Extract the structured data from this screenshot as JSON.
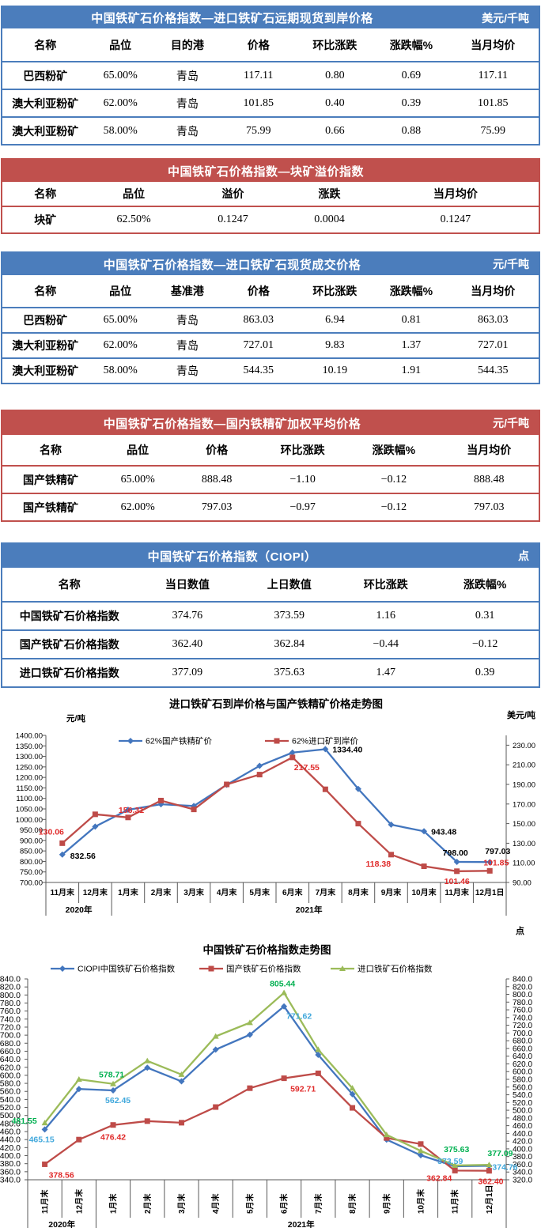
{
  "colors": {
    "blue_theme": "#4B7DBC",
    "red_theme": "#C0504D",
    "chart_blue": "#4376BE",
    "chart_red": "#BE4B48",
    "chart_green": "#9BBB59",
    "label_red": "#E02B2B",
    "label_blue": "#41A8DC",
    "label_green": "#00B050"
  },
  "tables": [
    {
      "id": "forward-spot-cfr",
      "theme": "blue",
      "title": "中国铁矿石价格指数—进口铁矿石远期现货到岸价格",
      "unit": "美元/千吨",
      "columns": [
        "名称",
        "品位",
        "目的港",
        "价格",
        "环比涨跌",
        "涨跌幅%",
        "当月均价"
      ],
      "rows": [
        [
          "巴西粉矿",
          "65.00%",
          "青岛",
          "117.11",
          "0.80",
          "0.69",
          "117.11"
        ],
        [
          "澳大利亚粉矿",
          "62.00%",
          "青岛",
          "101.85",
          "0.40",
          "0.39",
          "101.85"
        ],
        [
          "澳大利亚粉矿",
          "58.00%",
          "青岛",
          "75.99",
          "0.66",
          "0.88",
          "75.99"
        ]
      ]
    },
    {
      "id": "lump-premium",
      "theme": "red",
      "title": "中国铁矿石价格指数—块矿溢价指数",
      "unit": "",
      "columns": [
        "名称",
        "品位",
        "溢价",
        "涨跌",
        "当月均价"
      ],
      "rows": [
        [
          "块矿",
          "62.50%",
          "0.1247",
          "0.0004",
          "0.1247"
        ]
      ]
    },
    {
      "id": "import-spot-deal",
      "theme": "blue",
      "title": "中国铁矿石价格指数—进口铁矿石现货成交价格",
      "unit": "元/千吨",
      "columns": [
        "名称",
        "品位",
        "基准港",
        "价格",
        "环比涨跌",
        "涨跌幅%",
        "当月均价"
      ],
      "rows": [
        [
          "巴西粉矿",
          "65.00%",
          "青岛",
          "863.03",
          "6.94",
          "0.81",
          "863.03"
        ],
        [
          "澳大利亚粉矿",
          "62.00%",
          "青岛",
          "727.01",
          "9.83",
          "1.37",
          "727.01"
        ],
        [
          "澳大利亚粉矿",
          "58.00%",
          "青岛",
          "544.35",
          "10.19",
          "1.91",
          "544.35"
        ]
      ]
    },
    {
      "id": "domestic-concentrate",
      "theme": "red",
      "title": "中国铁矿石价格指数—国内铁精矿加权平均价格",
      "unit": "元/千吨",
      "columns": [
        "名称",
        "品位",
        "价格",
        "环比涨跌",
        "涨跌幅%",
        "当月均价"
      ],
      "rows": [
        [
          "国产铁精矿",
          "65.00%",
          "888.48",
          "−1.10",
          "−0.12",
          "888.48"
        ],
        [
          "国产铁精矿",
          "62.00%",
          "797.03",
          "−0.97",
          "−0.12",
          "797.03"
        ]
      ]
    },
    {
      "id": "ciopi-index",
      "theme": "blue",
      "title": "中国铁矿石价格指数（CIOPI）",
      "unit": "点",
      "columns": [
        "名称",
        "当日数值",
        "上日数值",
        "环比涨跌",
        "涨跌幅%"
      ],
      "rows": [
        [
          "中国铁矿石价格指数",
          "374.76",
          "373.59",
          "1.16",
          "0.31"
        ],
        [
          "国产铁矿石价格指数",
          "362.40",
          "362.84",
          "−0.44",
          "−0.12"
        ],
        [
          "进口铁矿石价格指数",
          "377.09",
          "375.63",
          "1.47",
          "0.39"
        ]
      ]
    }
  ],
  "chart_data": [
    {
      "type": "line",
      "title": "进口铁矿石到岸价格与国产铁精矿价格走势图",
      "left_axis": {
        "unit": "元/吨",
        "min": 700,
        "max": 1400,
        "step": 50,
        "decimals": 2
      },
      "right_axis": {
        "unit": "美元/吨",
        "min": 90,
        "max": 240,
        "step": 20,
        "decimals": 2,
        "label_max": 230
      },
      "categories": [
        "11月末",
        "12月末",
        "1月末",
        "2月末",
        "3月末",
        "4月末",
        "5月末",
        "6月末",
        "7月末",
        "8月末",
        "9月末",
        "10月末",
        "11月末",
        "12月1日"
      ],
      "year_groups": [
        {
          "label": "2020年",
          "span": 2
        },
        {
          "label": "2021年",
          "span": 12
        }
      ],
      "legend_position": "top",
      "grid": false,
      "series": [
        {
          "name": "62%国产铁精矿价",
          "axis": "left",
          "color": "#4376BE",
          "label_color": "#000000",
          "marker": "diamond",
          "values": [
            832.56,
            966,
            1046,
            1072,
            1064,
            1165,
            1255,
            1318,
            1334.4,
            1145,
            975,
            943.48,
            798.0,
            797.03
          ],
          "point_labels": [
            {
              "i": 0,
              "text": "832.56",
              "dx": 10,
              "dy": 5
            },
            {
              "i": 8,
              "text": "1334.40",
              "dx": 9,
              "dy": 4
            },
            {
              "i": 11,
              "text": "943.48",
              "dx": 9,
              "dy": 4
            },
            {
              "i": 12,
              "text": "798.00",
              "dx": -18,
              "dy": -8
            },
            {
              "i": 13,
              "text": "797.03",
              "dx": -6,
              "dy": -10
            }
          ]
        },
        {
          "name": "62%进口矿到岸价",
          "axis": "right",
          "color": "#BE4B48",
          "label_color": "#E02B2B",
          "marker": "square",
          "values": [
            130.06,
            159.5,
            156.31,
            173.5,
            164.5,
            190,
            200,
            217.55,
            185,
            150,
            118.38,
            106.5,
            101.46,
            101.85
          ],
          "point_labels": [
            {
              "i": 0,
              "text": "130.06",
              "dx": -30,
              "dy": -11
            },
            {
              "i": 2,
              "text": "156.31",
              "dx": -12,
              "dy": -6
            },
            {
              "i": 7,
              "text": "217.55",
              "dx": 2,
              "dy": 16
            },
            {
              "i": 10,
              "text": "118.38",
              "dx": -32,
              "dy": 15
            },
            {
              "i": 12,
              "text": "101.46",
              "dx": -16,
              "dy": 16
            },
            {
              "i": 13,
              "text": "101.85",
              "dx": -8,
              "dy": -7
            }
          ]
        }
      ]
    },
    {
      "type": "line",
      "title": "中国铁矿石价格指数走势图",
      "left_axis": {
        "unit": "",
        "min": 340,
        "max": 840,
        "step": 20,
        "decimals": 1
      },
      "right_axis": {
        "unit": "点",
        "min": 320,
        "max": 840,
        "step": 20,
        "decimals": 1
      },
      "categories": [
        "11月末",
        "12月末",
        "1月末",
        "2月末",
        "3月末",
        "4月末",
        "5月末",
        "6月末",
        "7月末",
        "8月末",
        "9月末",
        "10月末",
        "11月末",
        "12月1日"
      ],
      "year_groups": [
        {
          "label": "2020年",
          "span": 2
        },
        {
          "label": "2021年",
          "span": 12
        }
      ],
      "legend_position": "top",
      "grid": false,
      "series": [
        {
          "name": "CIOPI中国铁矿石价格指数",
          "axis": "left",
          "color": "#4376BE",
          "label_color": "#41A8DC",
          "marker": "diamond",
          "values": [
            465.15,
            566,
            562.45,
            619,
            585,
            664,
            701,
            771.62,
            651,
            553,
            440,
            401,
            373.59,
            374.76
          ],
          "point_labels": [
            {
              "i": 0,
              "text": "465.15",
              "dx": -20,
              "dy": 16
            },
            {
              "i": 2,
              "text": "562.45",
              "dx": -10,
              "dy": 16
            },
            {
              "i": 7,
              "text": "771.62",
              "dx": 3,
              "dy": 16
            },
            {
              "i": 12,
              "text": "373.59",
              "dx": -22,
              "dy": -3
            },
            {
              "i": 13,
              "text": "374.76",
              "dx": 4,
              "dy": 5
            }
          ]
        },
        {
          "name": "国产铁矿石价格指数",
          "axis": "left",
          "color": "#BE4B48",
          "label_color": "#E02B2B",
          "marker": "square",
          "values": [
            378.56,
            440,
            476.42,
            486,
            482,
            521,
            568,
            592.71,
            605,
            519,
            444,
            429,
            362.84,
            362.4
          ],
          "point_labels": [
            {
              "i": 0,
              "text": "378.56",
              "dx": 5,
              "dy": 17
            },
            {
              "i": 2,
              "text": "476.42",
              "dx": -16,
              "dy": 19
            },
            {
              "i": 7,
              "text": "592.71",
              "dx": 8,
              "dy": 17
            },
            {
              "i": 12,
              "text": "362.84",
              "dx": -36,
              "dy": 13
            },
            {
              "i": 13,
              "text": "362.40",
              "dx": -14,
              "dy": 17
            }
          ]
        },
        {
          "name": "进口铁矿石价格指数",
          "axis": "left",
          "color": "#9BBB59",
          "label_color": "#00B050",
          "marker": "triangle",
          "values": [
            481.55,
            590,
            578.71,
            636,
            602,
            697,
            731,
            805.44,
            664,
            568,
            452,
            412,
            375.63,
            377.09
          ],
          "point_labels": [
            {
              "i": 0,
              "text": "481.55",
              "dx": -42,
              "dy": 1
            },
            {
              "i": 2,
              "text": "578.71",
              "dx": -18,
              "dy": -8
            },
            {
              "i": 7,
              "text": "805.44",
              "dx": -18,
              "dy": -8
            },
            {
              "i": 12,
              "text": "375.63",
              "dx": -14,
              "dy": -17
            },
            {
              "i": 13,
              "text": "377.09",
              "dx": -2,
              "dy": -11
            }
          ]
        }
      ]
    }
  ]
}
